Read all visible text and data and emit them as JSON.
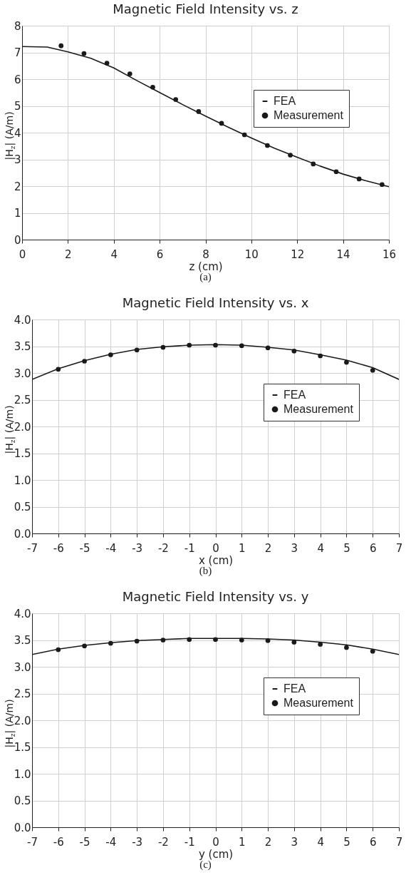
{
  "chart_data": [
    {
      "type": "line",
      "title": "Magnetic Field Intensity vs. z",
      "xlabel": "z (cm)",
      "ylabel": "|H$_{z}$| (A/m)",
      "annotations": [
        "(a)"
      ],
      "series": [
        {
          "name": "FEA",
          "type": "line",
          "color": "#1a1a1a",
          "marker": "none",
          "line_style": "solid",
          "x": [
            0,
            1.1,
            2,
            3,
            4,
            5,
            6,
            7,
            8,
            9,
            10,
            11,
            12,
            13,
            14,
            15,
            16
          ],
          "values": [
            7.22,
            7.2,
            7.02,
            6.78,
            6.42,
            5.95,
            5.5,
            5.05,
            4.62,
            4.2,
            3.8,
            3.42,
            3.08,
            2.75,
            2.45,
            2.2,
            1.98
          ]
        },
        {
          "name": "Measurement",
          "type": "scatter",
          "color": "#1a1a1a",
          "marker": "circle",
          "x": [
            1.7,
            2.7,
            3.7,
            4.7,
            5.7,
            6.7,
            7.7,
            8.7,
            9.7,
            10.7,
            11.7,
            12.7,
            13.7,
            14.7,
            15.7
          ],
          "values": [
            7.25,
            6.96,
            6.6,
            6.2,
            5.7,
            5.24,
            4.79,
            4.35,
            3.92,
            3.52,
            3.16,
            2.83,
            2.54,
            2.27,
            2.06
          ]
        }
      ],
      "xlim": [
        0,
        16
      ],
      "xticks": [
        0,
        2,
        4,
        6,
        8,
        10,
        12,
        14,
        16
      ],
      "ylim": [
        0,
        8
      ],
      "yticks": [
        0,
        1,
        2,
        3,
        4,
        5,
        6,
        7,
        8
      ],
      "grid": true,
      "legend": "right"
    },
    {
      "type": "line",
      "title": "Magnetic Field Intensity vs. x",
      "xlabel": "x (cm)",
      "ylabel": "|H$_{z}$| (A/m)",
      "annotations": [
        "(b)"
      ],
      "series": [
        {
          "name": "FEA",
          "type": "line",
          "color": "#1a1a1a",
          "marker": "none",
          "line_style": "solid",
          "x": [
            -7,
            -6,
            -5,
            -4,
            -3,
            -2,
            -1,
            0,
            1,
            2,
            3,
            4,
            5,
            6,
            7
          ],
          "values": [
            2.88,
            3.08,
            3.23,
            3.35,
            3.44,
            3.49,
            3.52,
            3.53,
            3.52,
            3.48,
            3.43,
            3.34,
            3.24,
            3.1,
            2.88
          ]
        },
        {
          "name": "Measurement",
          "type": "scatter",
          "color": "#1a1a1a",
          "marker": "circle",
          "x": [
            -6,
            -5,
            -4,
            -3,
            -2,
            -1,
            0,
            1,
            2,
            3,
            4,
            5,
            6
          ],
          "values": [
            3.07,
            3.22,
            3.34,
            3.43,
            3.48,
            3.52,
            3.52,
            3.51,
            3.47,
            3.41,
            3.32,
            3.2,
            3.05
          ]
        }
      ],
      "xlim": [
        -7,
        7
      ],
      "xticks": [
        -7,
        -6,
        -5,
        -4,
        -3,
        -2,
        -1,
        0,
        1,
        2,
        3,
        4,
        5,
        6,
        7
      ],
      "ylim": [
        0,
        4
      ],
      "yticks": [
        {
          "value": 0,
          "label": "0.0"
        },
        0.5,
        {
          "value": 1,
          "label": "1.0"
        },
        1.5,
        {
          "value": 2,
          "label": "2.0"
        },
        2.5,
        {
          "value": 3,
          "label": "3.0"
        },
        3.5,
        {
          "value": 4,
          "label": "4.0"
        }
      ],
      "grid": true,
      "legend": "right"
    },
    {
      "type": "line",
      "title": "Magnetic Field Intensity vs. y",
      "xlabel": "y (cm)",
      "ylabel": "|H$_{z}$| (A/m)",
      "annotations": [
        "(c)"
      ],
      "series": [
        {
          "name": "FEA",
          "type": "line",
          "color": "#1a1a1a",
          "marker": "none",
          "line_style": "solid",
          "x": [
            -7,
            -6,
            -5,
            -4,
            -3,
            -2,
            -1,
            0,
            1,
            2,
            3,
            4,
            5,
            6,
            7
          ],
          "values": [
            3.23,
            3.33,
            3.4,
            3.45,
            3.49,
            3.51,
            3.53,
            3.53,
            3.53,
            3.52,
            3.5,
            3.46,
            3.41,
            3.33,
            3.23
          ]
        },
        {
          "name": "Measurement",
          "type": "scatter",
          "color": "#1a1a1a",
          "marker": "circle",
          "x": [
            -6,
            -5,
            -4,
            -3,
            -2,
            -1,
            0,
            1,
            2,
            3,
            4,
            5,
            6
          ],
          "values": [
            3.32,
            3.39,
            3.44,
            3.48,
            3.5,
            3.51,
            3.51,
            3.5,
            3.49,
            3.46,
            3.42,
            3.36,
            3.29
          ]
        }
      ],
      "xlim": [
        -7,
        7
      ],
      "xticks": [
        -7,
        -6,
        -5,
        -4,
        -3,
        -2,
        -1,
        0,
        1,
        2,
        3,
        4,
        5,
        6,
        7
      ],
      "ylim": [
        0,
        4
      ],
      "yticks": [
        {
          "value": 0,
          "label": "0.0"
        },
        0.5,
        {
          "value": 1,
          "label": "1.0"
        },
        1.5,
        {
          "value": 2,
          "label": "2.0"
        },
        2.5,
        {
          "value": 3,
          "label": "3.0"
        },
        3.5,
        {
          "value": 4,
          "label": "4.0"
        }
      ],
      "grid": true,
      "legend": "right"
    }
  ]
}
